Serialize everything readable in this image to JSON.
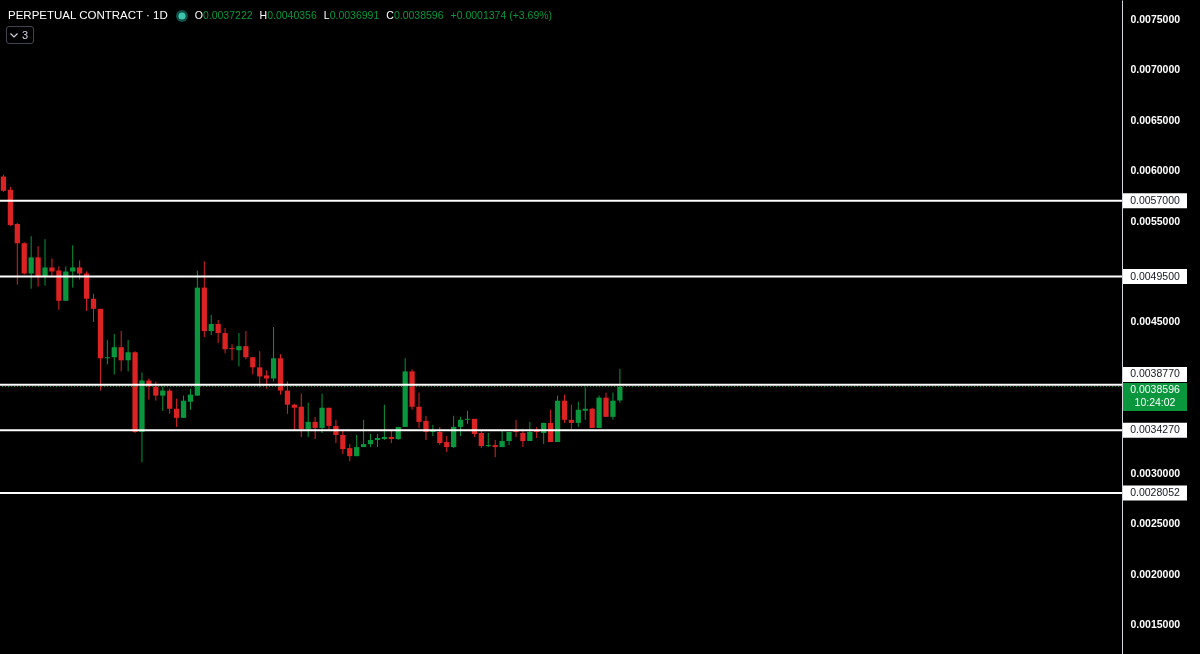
{
  "chart_data": {
    "type": "candlestick",
    "title": "PERPETUAL CONTRACT · 1D",
    "annotations": [
      "O0.0037222",
      "H0.0040356",
      "L0.0036991",
      "C0.0038596",
      "+0.0001374 (+3.69%)",
      "3"
    ],
    "categories": [
      null,
      null,
      null,
      null,
      null,
      null,
      null,
      null,
      null,
      null,
      null,
      null,
      null,
      null,
      null,
      null,
      null,
      null,
      null,
      null,
      null,
      null,
      null,
      null,
      null,
      null,
      null,
      null,
      null,
      null,
      null,
      null,
      null,
      null,
      null,
      null,
      null,
      null,
      null,
      null,
      null,
      null,
      null,
      null,
      null,
      null,
      null,
      null,
      null,
      null,
      null,
      null,
      null,
      null,
      null,
      null,
      null,
      null,
      null,
      null,
      null,
      null,
      null,
      null,
      null,
      null,
      null,
      null,
      null,
      null,
      null,
      null,
      null,
      null,
      null,
      null,
      null,
      null,
      null,
      null,
      null,
      null,
      null,
      null,
      null,
      null,
      null,
      null,
      null,
      null,
      null,
      null,
      null,
      null,
      null,
      null,
      null,
      null,
      null,
      null,
      null,
      null,
      null,
      null,
      null,
      null,
      null,
      null,
      null,
      null,
      null,
      null,
      null,
      null,
      null,
      null,
      null,
      null,
      null,
      null,
      null,
      null,
      null,
      null,
      null,
      null,
      null,
      null,
      null,
      null,
      null,
      null,
      null,
      null,
      null,
      null,
      null,
      null,
      null,
      null,
      null,
      null,
      null,
      null,
      null,
      null,
      null,
      null,
      null,
      null,
      null,
      null,
      null,
      null,
      null,
      null,
      null,
      null,
      null,
      null,
      null,
      null
    ],
    "ohlc": [
      [
        0.00594,
        0.00596,
        0.00579,
        0.0058
      ],
      [
        0.00581,
        0.00584,
        0.00545,
        0.00546
      ],
      [
        0.00547,
        0.00548,
        0.00487,
        0.00528
      ],
      [
        0.00528,
        0.00529,
        0.00497,
        0.00498
      ],
      [
        0.00498,
        0.00535,
        0.00483,
        0.00514
      ],
      [
        0.00514,
        0.00525,
        0.00485,
        0.00495
      ],
      [
        0.00495,
        0.00532,
        0.00486,
        0.00504
      ],
      [
        0.00504,
        0.00513,
        0.00495,
        0.005
      ],
      [
        0.00501,
        0.00505,
        0.00462,
        0.00471
      ],
      [
        0.00471,
        0.00505,
        0.00471,
        0.005
      ],
      [
        0.005,
        0.00526,
        0.00484,
        0.00504
      ],
      [
        0.00504,
        0.00511,
        0.00492,
        0.00498
      ],
      [
        0.00498,
        0.005,
        0.00461,
        0.00473
      ],
      [
        0.00473,
        0.00478,
        0.0045,
        0.00463
      ],
      [
        0.00463,
        0.00463,
        0.00382,
        0.00414
      ],
      [
        0.00414,
        0.00432,
        0.00408,
        0.00415
      ],
      [
        0.00415,
        0.00438,
        0.00398,
        0.00425
      ],
      [
        0.00425,
        0.00441,
        0.00401,
        0.00412
      ],
      [
        0.00412,
        0.00432,
        0.00401,
        0.0042
      ],
      [
        0.0042,
        0.00421,
        0.0034,
        0.00341
      ],
      [
        0.00341,
        0.004,
        0.00311,
        0.00392
      ],
      [
        0.00392,
        0.00394,
        0.00373,
        0.00386
      ],
      [
        0.00386,
        0.00391,
        0.00372,
        0.00377
      ],
      [
        0.00377,
        0.00386,
        0.00362,
        0.00382
      ],
      [
        0.00382,
        0.00384,
        0.00359,
        0.00364
      ],
      [
        0.00364,
        0.00374,
        0.00346,
        0.00355
      ],
      [
        0.00355,
        0.00377,
        0.00355,
        0.00372
      ],
      [
        0.00371,
        0.00384,
        0.00363,
        0.00378
      ],
      [
        0.00377,
        0.00501,
        0.00377,
        0.00484
      ],
      [
        0.00484,
        0.0051,
        0.00435,
        0.00441
      ],
      [
        0.00441,
        0.00457,
        0.00437,
        0.00448
      ],
      [
        0.00448,
        0.00452,
        0.00429,
        0.00439
      ],
      [
        0.00439,
        0.00444,
        0.00419,
        0.00423
      ],
      [
        0.00424,
        0.00428,
        0.00412,
        0.00423
      ],
      [
        0.00422,
        0.00439,
        0.00406,
        0.00426
      ],
      [
        0.00426,
        0.00441,
        0.00413,
        0.00415
      ],
      [
        0.00415,
        0.00415,
        0.00398,
        0.00405
      ],
      [
        0.00405,
        0.00421,
        0.00385,
        0.00396
      ],
      [
        0.00397,
        0.00402,
        0.00384,
        0.00394
      ],
      [
        0.00394,
        0.00445,
        0.00391,
        0.00414
      ],
      [
        0.00414,
        0.00418,
        0.00378,
        0.00382
      ],
      [
        0.00382,
        0.00391,
        0.00359,
        0.00368
      ],
      [
        0.00368,
        0.00369,
        0.00343,
        0.00365
      ],
      [
        0.00366,
        0.00379,
        0.00336,
        0.00344
      ],
      [
        0.00344,
        0.0037,
        0.00336,
        0.00351
      ],
      [
        0.00351,
        0.00356,
        0.00334,
        0.00345
      ],
      [
        0.00345,
        0.00379,
        0.0034,
        0.00365
      ],
      [
        0.00365,
        0.00365,
        0.00342,
        0.00347
      ],
      [
        0.00347,
        0.00353,
        0.0033,
        0.00338
      ],
      [
        0.00338,
        0.00343,
        0.00319,
        0.00324
      ],
      [
        0.00325,
        0.00329,
        0.00312,
        0.00317
      ],
      [
        0.00317,
        0.00338,
        0.00317,
        0.00326
      ],
      [
        0.00326,
        0.00353,
        0.00326,
        0.00329
      ],
      [
        0.00329,
        0.00339,
        0.00326,
        0.00333
      ],
      [
        0.00333,
        0.00339,
        0.00326,
        0.00335
      ],
      [
        0.00334,
        0.00368,
        0.00333,
        0.00336
      ],
      [
        0.00336,
        0.00343,
        0.0033,
        0.00334
      ],
      [
        0.00334,
        0.00346,
        0.00333,
        0.00346
      ],
      [
        0.00346,
        0.00414,
        0.00346,
        0.00401
      ],
      [
        0.00401,
        0.00403,
        0.00363,
        0.00366
      ],
      [
        0.00366,
        0.0038,
        0.00345,
        0.00351
      ],
      [
        0.00352,
        0.00357,
        0.00333,
        0.00341
      ],
      [
        0.00341,
        0.00348,
        0.00337,
        0.00342
      ],
      [
        0.00341,
        0.00346,
        0.00328,
        0.0033
      ],
      [
        0.00331,
        0.00337,
        0.00321,
        0.00326
      ],
      [
        0.00326,
        0.00357,
        0.00325,
        0.00346
      ],
      [
        0.00346,
        0.00356,
        0.00337,
        0.00353
      ],
      [
        0.00353,
        0.00362,
        0.00349,
        0.00354
      ],
      [
        0.00354,
        0.00354,
        0.00336,
        0.00339
      ],
      [
        0.0034,
        0.00343,
        0.00325,
        0.00327
      ],
      [
        0.00327,
        0.0034,
        0.00326,
        0.00328
      ],
      [
        0.00328,
        0.00333,
        0.00316,
        0.00326
      ],
      [
        0.00326,
        0.00342,
        0.00326,
        0.00332
      ],
      [
        0.00332,
        0.00341,
        0.00328,
        0.00341
      ],
      [
        0.00342,
        0.00353,
        0.00336,
        0.00341
      ],
      [
        0.0034,
        0.00344,
        0.00326,
        0.00332
      ],
      [
        0.00332,
        0.00351,
        0.00332,
        0.00341
      ],
      [
        0.00343,
        0.00346,
        0.00335,
        0.00341
      ],
      [
        0.0034,
        0.0035,
        0.00329,
        0.0035
      ],
      [
        0.0035,
        0.00363,
        0.00331,
        0.00331
      ],
      [
        0.00331,
        0.00377,
        0.00331,
        0.00372
      ],
      [
        0.00372,
        0.00378,
        0.0035,
        0.00353
      ],
      [
        0.00353,
        0.00368,
        0.00344,
        0.0035
      ],
      [
        0.0035,
        0.00371,
        0.00346,
        0.00363
      ],
      [
        0.00362,
        0.00385,
        0.00353,
        0.00364
      ],
      [
        0.00364,
        0.00365,
        0.00345,
        0.00345
      ],
      [
        0.00345,
        0.00377,
        0.00345,
        0.00375
      ],
      [
        0.00375,
        0.0038,
        0.00356,
        0.00356
      ],
      [
        0.00356,
        0.0038,
        0.00353,
        0.00372
      ],
      [
        0.0037222,
        0.0040356,
        0.0036991,
        0.0038596
      ],
      null,
      null,
      null,
      null,
      null,
      null,
      null,
      null,
      null,
      null,
      null,
      null,
      null,
      null,
      null,
      null,
      null,
      null,
      null,
      null,
      null,
      null,
      null,
      null,
      null,
      null,
      null,
      null,
      null,
      null,
      null,
      null,
      null,
      null,
      null,
      null,
      null,
      null,
      null,
      null,
      null,
      null,
      null,
      null,
      null,
      null,
      null,
      null,
      null,
      null,
      null,
      null,
      null,
      null,
      null,
      null,
      null,
      null,
      null,
      null,
      null,
      null,
      null,
      null,
      null,
      null,
      null,
      null,
      null,
      null,
      null,
      null
    ],
    "colors": [
      "#dc2323",
      "#dc2323",
      "#dc2323",
      "#dc2323",
      "#0a963c",
      "#dc2323",
      "#0a963c",
      "#dc2323",
      "#dc2323",
      "#0a963c",
      "#0a963c",
      "#dc2323",
      "#dc2323",
      "#dc2323",
      "#dc2323",
      "#0a963c",
      "#0a963c",
      "#dc2323",
      "#0a963c",
      "#dc2323",
      "#0a963c",
      "#dc2323",
      "#dc2323",
      "#0a963c",
      "#dc2323",
      "#dc2323",
      "#0a963c",
      "#0a963c",
      "#0a963c",
      "#dc2323",
      "#0a963c",
      "#dc2323",
      "#dc2323",
      "#dc2323",
      "#0a963c",
      "#dc2323",
      "#dc2323",
      "#dc2323",
      "#dc2323",
      "#0a963c",
      "#dc2323",
      "#dc2323",
      "#dc2323",
      "#dc2323",
      "#0a963c",
      "#dc2323",
      "#0a963c",
      "#dc2323",
      "#dc2323",
      "#dc2323",
      "#dc2323",
      "#0a963c",
      "#0a963c",
      "#0a963c",
      "#0a963c",
      "#0a963c",
      "#dc2323",
      "#0a963c",
      "#0a963c",
      "#dc2323",
      "#dc2323",
      "#dc2323",
      "#0a963c",
      "#dc2323",
      "#dc2323",
      "#0a963c",
      "#0a963c",
      "#0a963c",
      "#dc2323",
      "#dc2323",
      "#0a963c",
      "#dc2323",
      "#0a963c",
      "#0a963c",
      "#dc2323",
      "#dc2323",
      "#0a963c",
      "#dc2323",
      "#0a963c",
      "#dc2323",
      "#0a963c",
      "#dc2323",
      "#dc2323",
      "#0a963c",
      "#0a963c",
      "#dc2323",
      "#0a963c",
      "#dc2323",
      "#0a963c",
      "#0a963c",
      null,
      null,
      null,
      null,
      null,
      null,
      null,
      null,
      null,
      null,
      null,
      null,
      null,
      null,
      null,
      null,
      null,
      null,
      null,
      null,
      null,
      null,
      null,
      null,
      null,
      null,
      null,
      null,
      null,
      null,
      null,
      null,
      null,
      null,
      null,
      null,
      null,
      null,
      null,
      null,
      null,
      null,
      null,
      null,
      null,
      null,
      null,
      null,
      null,
      null,
      null,
      null,
      null,
      null,
      null,
      null,
      null,
      null,
      null,
      null,
      null,
      null,
      null,
      null,
      null,
      null,
      null,
      null,
      null,
      null,
      null,
      null
    ],
    "ylim": [
      0.00121,
      0.00769
    ],
    "yticks": [
      {
        "value": 0.0075,
        "label": "0.0075000"
      },
      {
        "value": 0.007,
        "label": "0.0070000"
      },
      {
        "value": 0.0065,
        "label": "0.0065000"
      },
      {
        "value": 0.006,
        "label": "0.0060000"
      },
      {
        "value": 0.0055,
        "label": "0.0055000"
      },
      {
        "value": 0.0045,
        "label": "0.0045000"
      },
      {
        "value": 0.003,
        "label": "0.0030000"
      },
      {
        "value": 0.0025,
        "label": "0.0025000"
      },
      {
        "value": 0.002,
        "label": "0.0020000"
      },
      {
        "value": 0.0015,
        "label": "0.0015000"
      }
    ],
    "ref_lines": [
      {
        "axis": "y",
        "value": 0.0057,
        "label": "0.0057000",
        "color": "#ffffff"
      },
      {
        "axis": "y",
        "value": 0.00495,
        "label": "0.0049500",
        "color": "#ffffff"
      },
      {
        "axis": "y",
        "value": 0.003877,
        "label": "0.0038770",
        "color": "#ffffff"
      },
      {
        "axis": "y",
        "value": 0.003427,
        "label": "0.0034270",
        "color": "#ffffff"
      },
      {
        "axis": "y",
        "value": 0.0028052,
        "label": "0.0028052",
        "color": "#ffffff"
      },
      {
        "axis": "y",
        "value": 0.0038596,
        "label": "0.0038596\n10:24:02",
        "color": "#0a963c",
        "line_style": "dotted"
      }
    ]
  }
}
